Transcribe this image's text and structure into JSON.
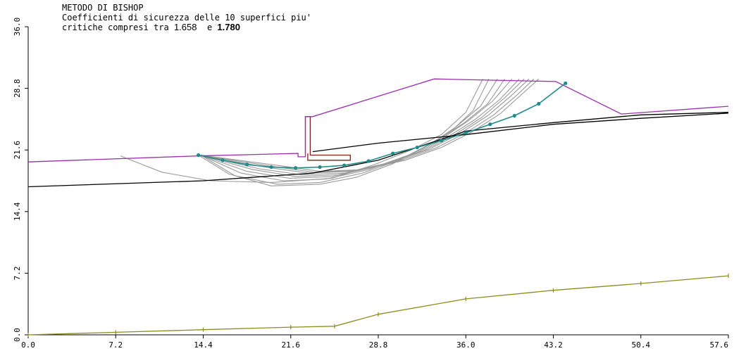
{
  "chart_data": {
    "type": "line",
    "title_line1": "METODO DI BISHOP",
    "title_line2": "Coefficienti di sicurezza delle 10 superfici piu'",
    "title_line3_prefix": "critiche compresi tra",
    "fs_min": "1.658",
    "title_line3_mid": "e",
    "fs_max": "1.780",
    "xlabel": "",
    "ylabel": "",
    "xlim": [
      0,
      57.6
    ],
    "ylim": [
      0,
      36
    ],
    "x_ticks": [
      "0.0",
      "7.2",
      "14.4",
      "21.6",
      "28.8",
      "36.0",
      "43.2",
      "50.4",
      "57.6"
    ],
    "y_ticks": [
      "0.0",
      "7.2",
      "14.4",
      "21.6",
      "28.8",
      "36.0"
    ],
    "colors": {
      "ground": "#9b2fae",
      "layer": "#000000",
      "wall": "#8b1a1a",
      "surfaces": "#9a9a9a",
      "critical": "#1f8a8a",
      "water": "#8c8c1e"
    },
    "series": [
      {
        "role": "ground",
        "x": [
          0,
          13.9,
          22.2,
          22.2,
          22.8,
          22.8,
          23.4,
          33.4,
          43.4,
          48.8,
          57.6
        ],
        "y": [
          20.2,
          20.9,
          21.2,
          20.8,
          20.8,
          25.5,
          25.5,
          29.9,
          29.6,
          25.8,
          26.7
        ]
      },
      {
        "role": "layer",
        "x": [
          0,
          14.4,
          23.4,
          28.8,
          36.0,
          43.2,
          50.4,
          57.6
        ],
        "y": [
          17.3,
          18.0,
          18.9,
          20.4,
          23.8,
          24.8,
          25.7,
          26.0
        ]
      },
      {
        "role": "layer",
        "x": [
          23.4,
          28.8,
          36.0,
          43.2,
          50.4,
          57.6
        ],
        "y": [
          21.4,
          22.4,
          23.4,
          24.6,
          25.3,
          25.9
        ]
      },
      {
        "role": "water",
        "x": [
          0,
          7.2,
          14.4,
          21.6,
          25.2,
          28.8,
          36.0,
          43.2,
          50.4,
          57.6
        ],
        "y": [
          0.0,
          0.3,
          0.6,
          0.9,
          1.0,
          2.4,
          4.2,
          5.2,
          6.0,
          6.9
        ]
      },
      {
        "role": "wall",
        "x": [
          22.8,
          22.8,
          23.2,
          23.2,
          26.5,
          26.5,
          23.0,
          23.0
        ],
        "y": [
          21.2,
          25.5,
          25.5,
          21.0,
          21.0,
          20.4,
          20.4,
          21.2
        ]
      },
      {
        "role": "critical",
        "x": [
          14.0,
          16.0,
          18.0,
          20.0,
          22.0,
          24.0,
          26.0,
          28.0,
          30.0,
          32.0,
          34.0,
          36.0,
          38.0,
          40.0,
          42.0,
          44.2
        ],
        "y": [
          21.0,
          20.4,
          19.9,
          19.6,
          19.5,
          19.6,
          19.8,
          20.3,
          21.2,
          21.9,
          22.7,
          23.6,
          24.6,
          25.6,
          27.0,
          29.4
        ]
      },
      {
        "role": "surface",
        "x": [
          7.6,
          11.0,
          15.0,
          20.0,
          25.0,
          28.5,
          31.5,
          34.0,
          36.0,
          37.4
        ],
        "y": [
          20.9,
          19.0,
          18.0,
          17.8,
          18.3,
          19.9,
          21.6,
          23.4,
          26.0,
          29.9
        ]
      },
      {
        "role": "surface",
        "x": [
          14.0,
          16.5,
          20.0,
          24.0,
          27.0,
          30.0,
          32.5,
          34.8,
          36.6,
          37.9
        ],
        "y": [
          21.0,
          18.8,
          17.4,
          17.6,
          18.4,
          20.0,
          21.8,
          23.8,
          26.2,
          29.9
        ]
      },
      {
        "role": "surface",
        "x": [
          14.2,
          17.0,
          20.5,
          24.0,
          27.5,
          30.5,
          33.0,
          35.2,
          37.2,
          38.6
        ],
        "y": [
          21.0,
          18.6,
          17.6,
          17.8,
          18.9,
          20.4,
          22.2,
          24.3,
          26.7,
          29.9
        ]
      },
      {
        "role": "surface",
        "x": [
          14.2,
          17.5,
          21.0,
          24.5,
          28.0,
          31.0,
          33.5,
          35.8,
          37.8,
          39.2
        ],
        "y": [
          21.0,
          18.9,
          18.0,
          18.2,
          19.3,
          20.8,
          22.6,
          24.7,
          27.0,
          29.9
        ]
      },
      {
        "role": "surface",
        "x": [
          14.2,
          18.0,
          21.5,
          25.0,
          28.5,
          31.5,
          34.0,
          36.2,
          38.2,
          39.8
        ],
        "y": [
          21.0,
          19.1,
          18.3,
          18.5,
          19.6,
          21.1,
          22.9,
          25.0,
          27.3,
          29.9
        ]
      },
      {
        "role": "surface",
        "x": [
          14.2,
          18.5,
          22.0,
          25.5,
          29.0,
          32.0,
          34.5,
          36.8,
          38.8,
          40.4
        ],
        "y": [
          21.0,
          19.3,
          18.5,
          18.7,
          19.8,
          21.3,
          23.1,
          25.2,
          27.5,
          29.9
        ]
      },
      {
        "role": "surface",
        "x": [
          14.2,
          19.0,
          22.5,
          26.0,
          29.5,
          32.5,
          35.0,
          37.3,
          39.2,
          40.8
        ],
        "y": [
          21.0,
          19.4,
          18.7,
          18.9,
          20.0,
          21.5,
          23.3,
          25.4,
          27.7,
          29.9
        ]
      },
      {
        "role": "surface",
        "x": [
          14.2,
          19.5,
          23.0,
          26.5,
          30.0,
          33.0,
          35.5,
          37.8,
          39.7,
          41.2
        ],
        "y": [
          21.0,
          19.6,
          18.9,
          19.1,
          20.2,
          21.7,
          23.5,
          25.6,
          27.9,
          29.9
        ]
      },
      {
        "role": "surface",
        "x": [
          14.2,
          20.0,
          23.5,
          27.0,
          30.5,
          33.5,
          36.0,
          38.3,
          40.2,
          41.6
        ],
        "y": [
          21.0,
          19.7,
          19.0,
          19.2,
          20.3,
          21.8,
          23.6,
          25.7,
          28.0,
          29.9
        ]
      },
      {
        "role": "surface",
        "x": [
          14.2,
          20.5,
          24.0,
          27.5,
          31.0,
          34.0,
          36.5,
          38.8,
          40.6,
          42.0
        ],
        "y": [
          21.0,
          19.8,
          19.1,
          19.3,
          20.4,
          21.9,
          23.7,
          25.8,
          28.1,
          29.9
        ]
      }
    ]
  }
}
